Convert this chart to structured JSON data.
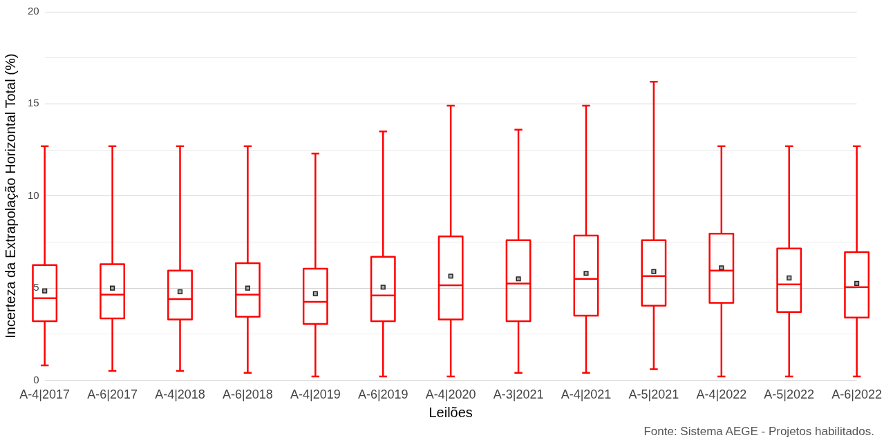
{
  "chart_data": {
    "type": "box",
    "xlabel": "Leilões",
    "ylabel": "Incerteza da Extrapolação Horizontal Total (%)",
    "categories": [
      "A-4|2017",
      "A-6|2017",
      "A-4|2018",
      "A-6|2018",
      "A-4|2019",
      "A-6|2019",
      "A-4|2020",
      "A-3|2021",
      "A-4|2021",
      "A-5|2021",
      "A-4|2022",
      "A-5|2022",
      "A-6|2022"
    ],
    "color": "#ff0000",
    "boxes": [
      {
        "low": 0.8,
        "q1": 3.2,
        "median": 4.45,
        "q3": 6.25,
        "high": 12.7,
        "mean": 4.85
      },
      {
        "low": 0.5,
        "q1": 3.35,
        "median": 4.65,
        "q3": 6.3,
        "high": 12.7,
        "mean": 5.0
      },
      {
        "low": 0.5,
        "q1": 3.3,
        "median": 4.4,
        "q3": 5.95,
        "high": 12.7,
        "mean": 4.8
      },
      {
        "low": 0.4,
        "q1": 3.45,
        "median": 4.65,
        "q3": 6.35,
        "high": 12.7,
        "mean": 5.0
      },
      {
        "low": 0.2,
        "q1": 3.05,
        "median": 4.25,
        "q3": 6.05,
        "high": 12.3,
        "mean": 4.7
      },
      {
        "low": 0.2,
        "q1": 3.2,
        "median": 4.6,
        "q3": 6.7,
        "high": 13.5,
        "mean": 5.05
      },
      {
        "low": 0.2,
        "q1": 3.3,
        "median": 5.15,
        "q3": 7.8,
        "high": 14.9,
        "mean": 5.65
      },
      {
        "low": 0.4,
        "q1": 3.2,
        "median": 5.25,
        "q3": 7.6,
        "high": 13.6,
        "mean": 5.5
      },
      {
        "low": 0.4,
        "q1": 3.5,
        "median": 5.5,
        "q3": 7.85,
        "high": 14.9,
        "mean": 5.8
      },
      {
        "low": 0.6,
        "q1": 4.05,
        "median": 5.65,
        "q3": 7.6,
        "high": 16.2,
        "mean": 5.9
      },
      {
        "low": 0.2,
        "q1": 4.2,
        "median": 5.95,
        "q3": 7.95,
        "high": 12.7,
        "mean": 6.1
      },
      {
        "low": 0.2,
        "q1": 3.7,
        "median": 5.2,
        "q3": 7.15,
        "high": 12.7,
        "mean": 5.55
      },
      {
        "low": 0.2,
        "q1": 3.4,
        "median": 5.05,
        "q3": 6.95,
        "high": 12.7,
        "mean": 5.25
      }
    ],
    "ylim": [
      0,
      20
    ],
    "yticks": [
      0,
      {
        "value": 2.5,
        "label": null
      },
      5,
      {
        "value": 7.5,
        "label": null
      },
      10,
      {
        "value": 12.5,
        "label": null
      },
      15,
      {
        "value": 17.5,
        "label": null
      },
      20
    ],
    "grid": "y",
    "annotations": [
      "Fonte: Sistema AEGE - Projetos habilitados."
    ]
  }
}
